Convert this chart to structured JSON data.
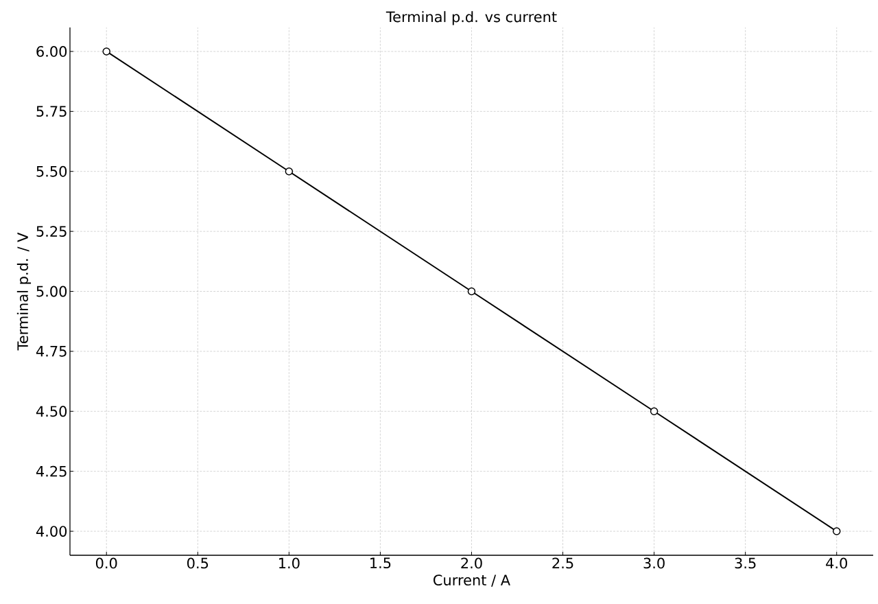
{
  "chart_data": {
    "type": "line",
    "title": "Terminal p.d. vs current",
    "xlabel": "Current / A",
    "ylabel": "Terminal p.d. / V",
    "x": [
      0,
      1,
      2,
      3,
      4
    ],
    "series": [
      {
        "color": "#000000",
        "values": [
          6.0,
          5.5,
          5.0,
          4.5,
          4.0
        ]
      }
    ],
    "marker": "circle",
    "line_style": "solid",
    "grid": true,
    "legend": false,
    "xlim": [
      -0.2,
      4.2
    ],
    "ylim": [
      3.9,
      6.1
    ],
    "xticks": [
      {
        "value": 0,
        "label": "0.0"
      },
      {
        "value": 0.5,
        "label": "0.5"
      },
      {
        "value": 1,
        "label": "1.0"
      },
      {
        "value": 1.5,
        "label": "1.5"
      },
      {
        "value": 2,
        "label": "2.0"
      },
      {
        "value": 2.5,
        "label": "2.5"
      },
      {
        "value": 3,
        "label": "3.0"
      },
      {
        "value": 3.5,
        "label": "3.5"
      },
      {
        "value": 4,
        "label": "4.0"
      }
    ],
    "yticks": [
      {
        "value": 4,
        "label": "4.00"
      },
      {
        "value": 4.25,
        "label": "4.25"
      },
      {
        "value": 4.5,
        "label": "4.50"
      },
      {
        "value": 4.75,
        "label": "4.75"
      },
      {
        "value": 5,
        "label": "5.00"
      },
      {
        "value": 5.25,
        "label": "5.25"
      },
      {
        "value": 5.5,
        "label": "5.50"
      },
      {
        "value": 5.75,
        "label": "5.75"
      },
      {
        "value": 6,
        "label": "6.00"
      }
    ]
  }
}
